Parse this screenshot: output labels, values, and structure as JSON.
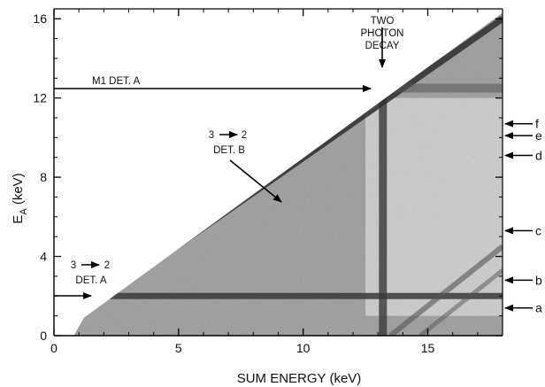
{
  "chart_data": {
    "type": "heatmap",
    "xlabel": "SUM ENERGY (keV)",
    "ylabel": "E",
    "ylabel_subscript": "A",
    "ylabel_unit": " (keV)",
    "xlim": [
      0,
      18
    ],
    "ylim": [
      0,
      16.5
    ],
    "xticks": [
      0,
      5,
      10,
      15
    ],
    "yticks": [
      0,
      4,
      8,
      12,
      16
    ],
    "grid": false,
    "features": {
      "diagonal_band": {
        "label": "3 → 2 DET. B",
        "from": [
          1.5,
          1.5
        ],
        "to": [
          18,
          16
        ]
      },
      "vertical_band": {
        "label": "TWO PHOTON DECAY",
        "x": 13.2,
        "y_range": [
          0,
          13
        ]
      },
      "horizontal_band": {
        "label": "3 → 2 DET. A",
        "y": 2.0,
        "x_range": [
          0.8,
          18
        ]
      },
      "m1_line": {
        "label": "M1 DET. A",
        "y": 12.9
      }
    },
    "annotations": [
      {
        "lines": [
          "TWO",
          "PHOTON",
          "DECAY"
        ]
      },
      {
        "lines": [
          "M1  DET. A"
        ]
      },
      {
        "lines": [
          "3",
          "2",
          "DET. B"
        ]
      },
      {
        "lines": [
          "3",
          "2",
          "DET. A"
        ]
      }
    ],
    "right_markers": [
      {
        "label": "f",
        "y": 10.7
      },
      {
        "label": "e",
        "y": 10.1
      },
      {
        "label": "d",
        "y": 9.1
      },
      {
        "label": "c",
        "y": 5.3
      },
      {
        "label": "b",
        "y": 2.8
      },
      {
        "label": "a",
        "y": 1.4
      }
    ]
  }
}
